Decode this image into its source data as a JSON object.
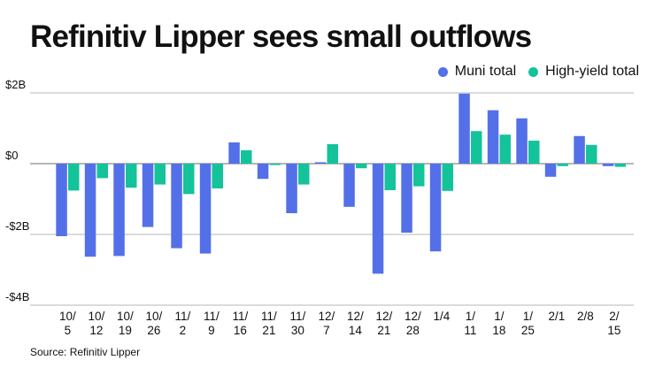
{
  "chart_data": {
    "type": "bar",
    "title": "Refinitiv Lipper sees small outflows",
    "source": "Source: Refinitiv Lipper",
    "xlabel": "",
    "ylabel": "",
    "ylim": [
      -4,
      2
    ],
    "y_unit": "billions of dollars",
    "y_ticks": [
      2,
      0,
      -2,
      -4
    ],
    "y_tick_labels": [
      "$2B",
      "$0",
      "-$2B",
      "-$4B"
    ],
    "grid": true,
    "legend_position": "top-right",
    "categories": [
      "10/5",
      "10/12",
      "10/19",
      "10/26",
      "11/2",
      "11/9",
      "11/16",
      "11/21",
      "11/30",
      "12/7",
      "12/14",
      "12/21",
      "12/28",
      "1/4",
      "1/11",
      "1/18",
      "1/25",
      "2/1",
      "2/8",
      "2/15"
    ],
    "category_label_lines": [
      [
        "10/",
        "5"
      ],
      [
        "10/",
        "12"
      ],
      [
        "10/",
        "19"
      ],
      [
        "10/",
        "26"
      ],
      [
        "11/",
        "2"
      ],
      [
        "11/",
        "9"
      ],
      [
        "11/",
        "16"
      ],
      [
        "11/",
        "21"
      ],
      [
        "11/",
        "30"
      ],
      [
        "12/",
        "7"
      ],
      [
        "12/",
        "14"
      ],
      [
        "12/",
        "21"
      ],
      [
        "12/",
        "28"
      ],
      [
        "1/4"
      ],
      [
        "1/",
        "11"
      ],
      [
        "1/",
        "18"
      ],
      [
        "1/",
        "25"
      ],
      [
        "2/1"
      ],
      [
        "2/8"
      ],
      [
        "2/",
        "15"
      ]
    ],
    "series": [
      {
        "name": "Muni total",
        "color": "#5470e8",
        "values": [
          -2.05,
          -2.63,
          -2.61,
          -1.79,
          -2.39,
          -2.54,
          0.6,
          -0.43,
          -1.4,
          0.04,
          -1.22,
          -3.11,
          -1.95,
          -2.48,
          1.98,
          1.51,
          1.28,
          -0.37,
          0.78,
          -0.07
        ]
      },
      {
        "name": "High-yield total",
        "color": "#14c39a",
        "values": [
          -0.76,
          -0.41,
          -0.68,
          -0.59,
          -0.86,
          -0.7,
          0.38,
          -0.04,
          -0.59,
          0.55,
          -0.13,
          -0.75,
          -0.64,
          -0.77,
          0.92,
          0.82,
          0.65,
          -0.07,
          0.53,
          -0.09
        ]
      }
    ]
  }
}
